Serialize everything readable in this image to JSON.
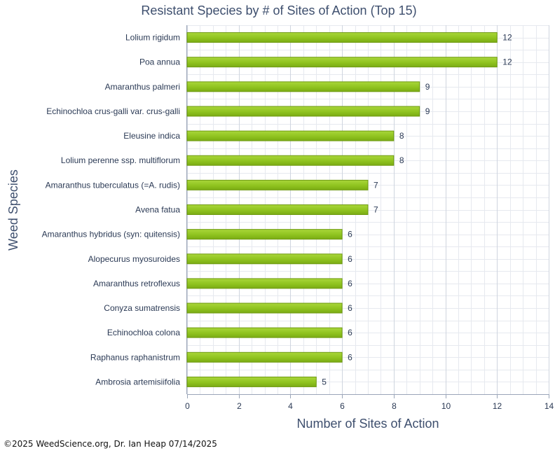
{
  "chart_data": {
    "type": "bar",
    "orientation": "horizontal",
    "title": "Resistant Species by # of Sites of Action (Top 15)",
    "xlabel": "Number of Sites of Action",
    "ylabel": "Weed Species",
    "xlim": [
      0,
      14
    ],
    "xticks": [
      0,
      2,
      4,
      6,
      8,
      10,
      12,
      14
    ],
    "grid": true,
    "legend": "none",
    "bar_color": "#8fc31f",
    "bar_edge_color": "#6f9a12",
    "categories": [
      "Lolium rigidum",
      "Poa annua",
      "Amaranthus palmeri",
      "Echinochloa crus-galli var. crus-galli",
      "Eleusine indica",
      "Lolium perenne ssp. multiflorum",
      "Amaranthus tuberculatus (=A. rudis)",
      "Avena fatua",
      "Amaranthus hybridus (syn: quitensis)",
      "Alopecurus myosuroides",
      "Amaranthus retroflexus",
      "Conyza sumatrensis",
      "Echinochloa colona",
      "Raphanus raphanistrum",
      "Ambrosia artemisiifolia"
    ],
    "values": [
      12,
      12,
      9,
      9,
      8,
      8,
      7,
      7,
      6,
      6,
      6,
      6,
      6,
      6,
      5
    ]
  },
  "footer": {
    "credit": "©2025 WeedScience.org, Dr. Ian Heap 07/14/2025"
  }
}
